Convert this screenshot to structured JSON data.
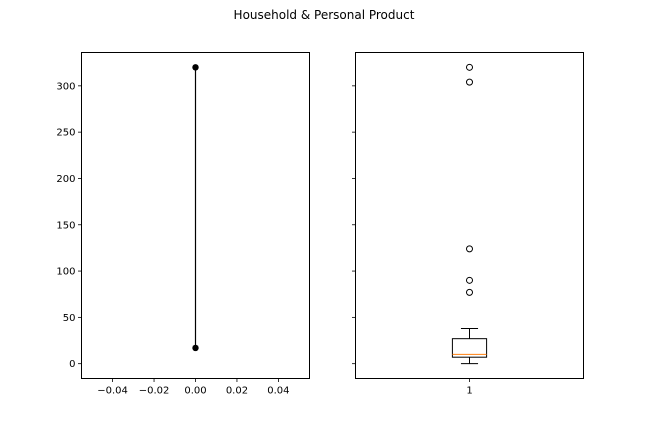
{
  "chart_data": [
    {
      "type": "line",
      "title": "Household & Personal Product",
      "xlabel": "",
      "ylabel": "",
      "xlim": [
        -0.055,
        0.055
      ],
      "ylim": [
        -16,
        336
      ],
      "xticks": [
        -0.04,
        -0.02,
        0.0,
        0.02,
        0.04
      ],
      "xtick_labels": [
        "−0.04",
        "−0.02",
        "0.00",
        "0.02",
        "0.04"
      ],
      "yticks": [
        0,
        50,
        100,
        150,
        200,
        250,
        300
      ],
      "ytick_labels": [
        "0",
        "50",
        "100",
        "150",
        "200",
        "250",
        "300"
      ],
      "series": [
        {
          "x": [
            0.0,
            0.0
          ],
          "y": [
            320,
            17
          ],
          "color": "#000000",
          "marker": "circle"
        }
      ],
      "grid": false
    },
    {
      "type": "box",
      "xlim": [
        0.5,
        1.5
      ],
      "ylim": [
        -16,
        336
      ],
      "share_y": true,
      "xticks": [
        1
      ],
      "xtick_labels": [
        "1"
      ],
      "box": {
        "position": 1,
        "whisker_low": 0,
        "q1": 7,
        "median": 10,
        "q3": 27,
        "whisker_high": 38,
        "outliers": [
          77,
          90,
          124,
          304,
          320
        ]
      },
      "median_color": "#ff7f0e",
      "grid": false
    }
  ]
}
